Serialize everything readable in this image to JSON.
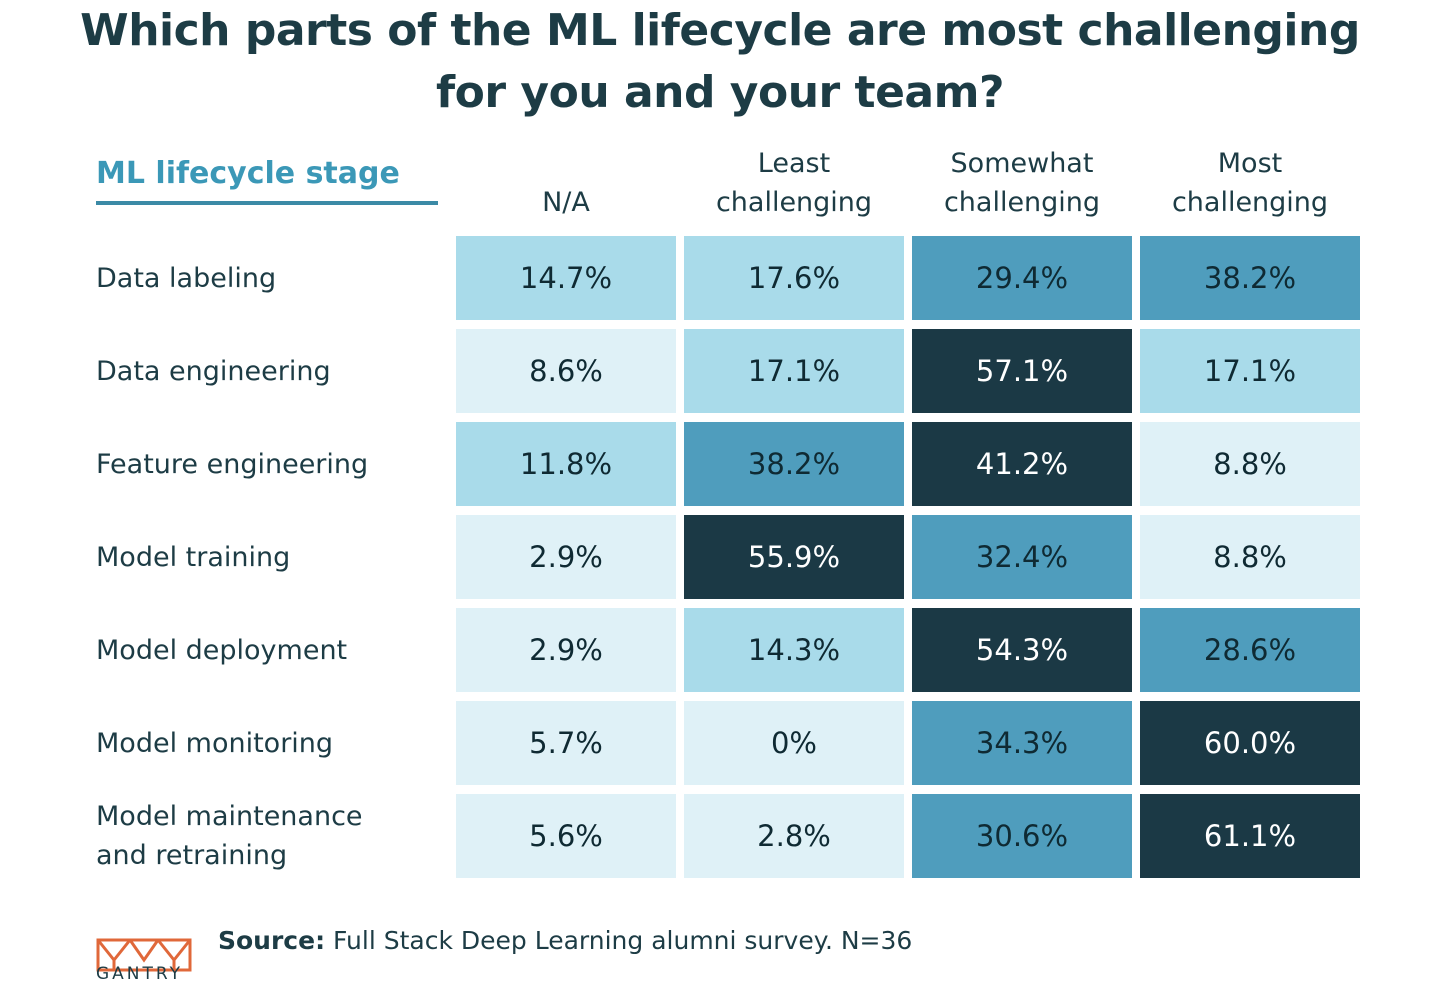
{
  "chart_data": {
    "type": "table",
    "title_lines": [
      "Which parts of the ML lifecycle are most challenging",
      "for you and your team?"
    ],
    "row_header": "ML lifecycle stage",
    "columns": [
      {
        "lines": [
          "N/A"
        ]
      },
      {
        "lines": [
          "Least",
          "challenging"
        ]
      },
      {
        "lines": [
          "Somewhat",
          "challenging"
        ]
      },
      {
        "lines": [
          "Most",
          "challenging"
        ]
      }
    ],
    "rows": [
      {
        "lines": [
          "Data labeling"
        ],
        "values": [
          14.7,
          17.6,
          29.4,
          38.2
        ],
        "labels": [
          "14.7%",
          "17.6%",
          "29.4%",
          "38.2%"
        ]
      },
      {
        "lines": [
          "Data engineering"
        ],
        "values": [
          8.6,
          17.1,
          57.1,
          17.1
        ],
        "labels": [
          "8.6%",
          "17.1%",
          "57.1%",
          "17.1%"
        ]
      },
      {
        "lines": [
          "Feature engineering"
        ],
        "values": [
          11.8,
          38.2,
          41.2,
          8.8
        ],
        "labels": [
          "11.8%",
          "38.2%",
          "41.2%",
          "8.8%"
        ]
      },
      {
        "lines": [
          "Model training"
        ],
        "values": [
          2.9,
          55.9,
          32.4,
          8.8
        ],
        "labels": [
          "2.9%",
          "55.9%",
          "32.4%",
          "8.8%"
        ]
      },
      {
        "lines": [
          "Model deployment"
        ],
        "values": [
          2.9,
          14.3,
          54.3,
          28.6
        ],
        "labels": [
          "2.9%",
          "14.3%",
          "54.3%",
          "28.6%"
        ]
      },
      {
        "lines": [
          "Model monitoring"
        ],
        "values": [
          5.7,
          0,
          34.3,
          60.0
        ],
        "labels": [
          "5.7%",
          "0%",
          "34.3%",
          "60.0%"
        ]
      },
      {
        "lines": [
          "Model maintenance",
          "and retraining"
        ],
        "values": [
          5.6,
          2.8,
          30.6,
          61.1
        ],
        "labels": [
          "5.6%",
          "2.8%",
          "30.6%",
          "61.1%"
        ]
      }
    ],
    "colors": {
      "lightest": "#dff1f7",
      "light": "#a9dbea",
      "medium": "#4f9dbd",
      "dark": "#1b3945",
      "text_dark": "#0f2a33",
      "text_light": "#ffffff"
    }
  },
  "source": {
    "bold": "Source:",
    "text": " Full Stack Deep Learning alumni survey. N=36"
  },
  "logo": {
    "word": "GANTRY",
    "color": "#e0683a"
  }
}
